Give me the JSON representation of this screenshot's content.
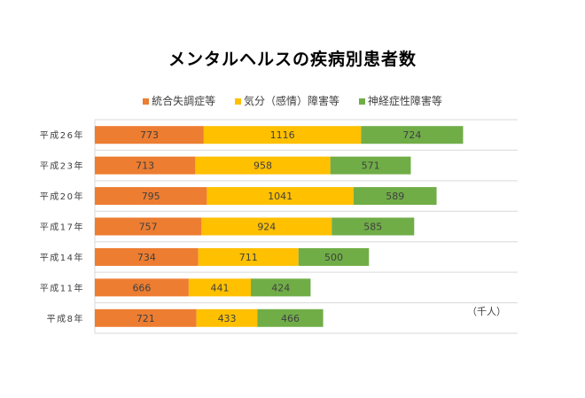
{
  "chart_data": {
    "type": "bar",
    "orientation": "horizontal",
    "stacked": true,
    "title": "メンタルヘルスの疾病別患者数",
    "unit_label": "（千人）",
    "categories": [
      "平成26年",
      "平成23年",
      "平成20年",
      "平成17年",
      "平成14年",
      "平成11年",
      "平成8年"
    ],
    "series": [
      {
        "name": "統合失調症等",
        "color": "#ED7D31",
        "values": [
          773,
          713,
          795,
          757,
          734,
          666,
          721
        ]
      },
      {
        "name": "気分（感情）障害等",
        "color": "#FFC000",
        "values": [
          1116,
          958,
          1041,
          924,
          711,
          441,
          433
        ]
      },
      {
        "name": "神経症性障害等",
        "color": "#70AD47",
        "values": [
          724,
          571,
          589,
          585,
          500,
          424,
          466
        ]
      }
    ],
    "xlim": [
      0,
      3000
    ],
    "grid": true,
    "data_labels": true,
    "legend": "top"
  }
}
